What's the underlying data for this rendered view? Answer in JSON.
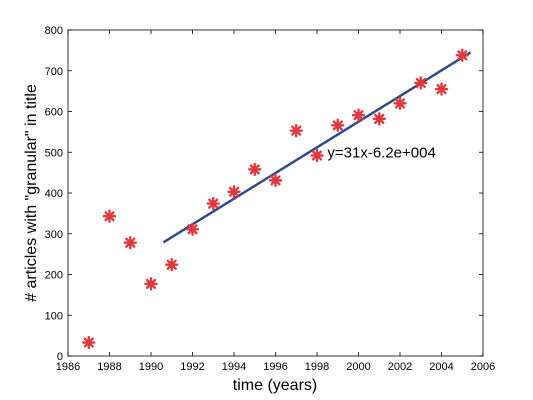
{
  "chart_data": {
    "type": "scatter",
    "title": "",
    "xlabel": "time (years)",
    "ylabel": "# articles with \"granular\" in title",
    "xlim": [
      1986,
      2006
    ],
    "ylim": [
      0,
      800
    ],
    "xticks": [
      1986,
      1988,
      1990,
      1992,
      1994,
      1996,
      1998,
      2000,
      2002,
      2004,
      2006
    ],
    "yticks": [
      0,
      100,
      200,
      300,
      400,
      500,
      600,
      700,
      800
    ],
    "xtick_labels": [
      "1986",
      "1988",
      "1990",
      "1992",
      "1994",
      "1996",
      "1998",
      "2000",
      "2002",
      "2004",
      "2006"
    ],
    "ytick_labels": [
      "0",
      "100",
      "200",
      "300",
      "400",
      "500",
      "600",
      "700",
      "800"
    ],
    "grid": false,
    "legend": "none",
    "series": [
      {
        "marker": "asterisk",
        "color": "#e0393e",
        "x": [
          1987,
          1988,
          1989,
          1990,
          1991,
          1992,
          1993,
          1994,
          1995,
          1996,
          1997,
          1998,
          1999,
          2000,
          2001,
          2002,
          2003,
          2004,
          2005
        ],
        "y": [
          33,
          343,
          278,
          177,
          224,
          311,
          374,
          403,
          458,
          431,
          553,
          492,
          566,
          591,
          582,
          620,
          670,
          655,
          738
        ]
      }
    ],
    "fit_line": {
      "color": "#2e4a8c",
      "x": [
        1990.6,
        2005.4
      ],
      "y": [
        279,
        745
      ]
    },
    "annotations": [
      {
        "text": "y=31x-6.2e+004",
        "x": 1998.5,
        "y": 500
      }
    ]
  }
}
